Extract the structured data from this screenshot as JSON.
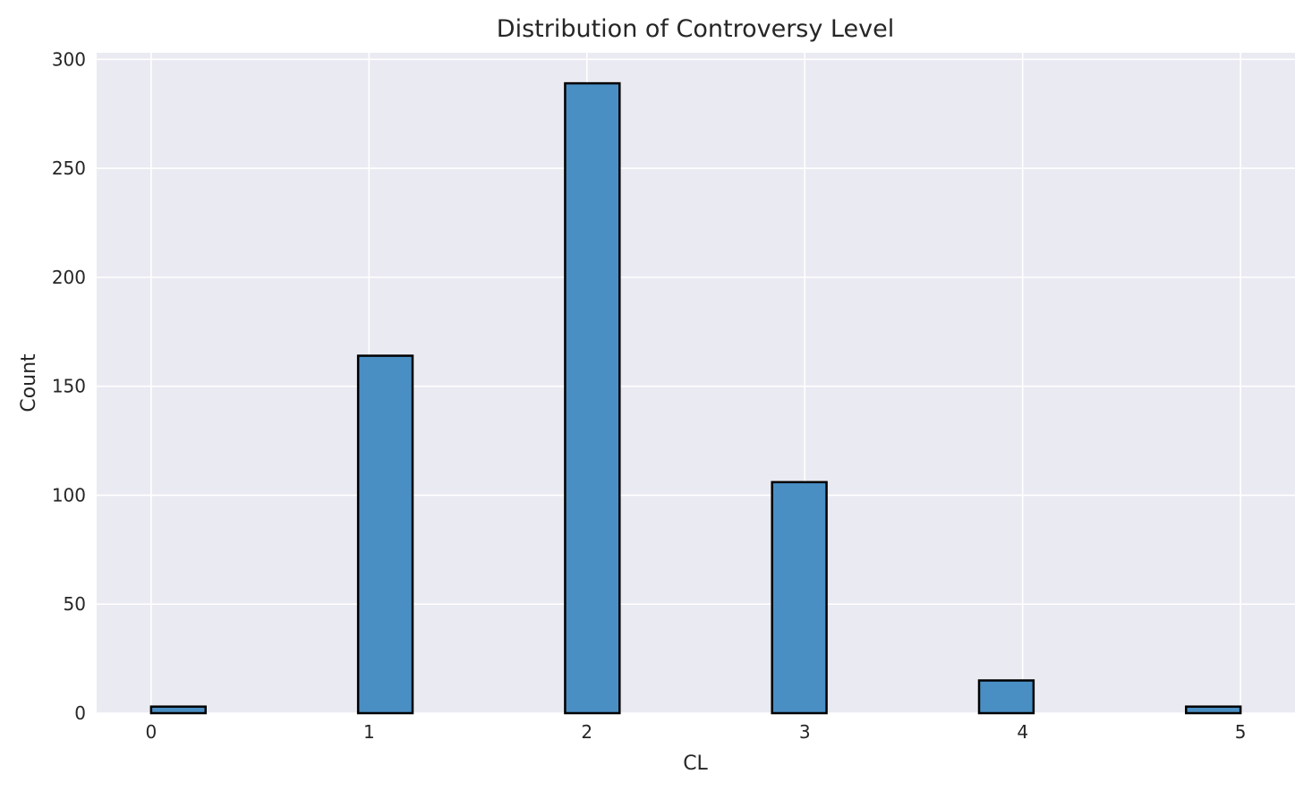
{
  "chart_data": {
    "type": "bar",
    "title": "Distribution of Controversy Level",
    "xlabel": "CL",
    "ylabel": "Count",
    "xlim": [
      -0.25,
      5.25
    ],
    "ylim": [
      0,
      303
    ],
    "xticks": [
      "0",
      "1",
      "2",
      "3",
      "4",
      "5"
    ],
    "yticks": [
      "0",
      "50",
      "100",
      "150",
      "200",
      "250",
      "300"
    ],
    "grid": true,
    "bins": [
      {
        "x_start": 0.0,
        "x_end": 0.25,
        "value": 3
      },
      {
        "x_start": 0.95,
        "x_end": 1.2,
        "value": 164
      },
      {
        "x_start": 1.9,
        "x_end": 2.15,
        "value": 289
      },
      {
        "x_start": 2.85,
        "x_end": 3.1,
        "value": 106
      },
      {
        "x_start": 3.8,
        "x_end": 4.05,
        "value": 15
      },
      {
        "x_start": 4.75,
        "x_end": 5.0,
        "value": 3
      }
    ],
    "colors": {
      "bar_fill": "#4a8fc4",
      "bar_edge": "#000000",
      "plot_background": "#eaeaf2",
      "grid": "#ffffff"
    }
  }
}
